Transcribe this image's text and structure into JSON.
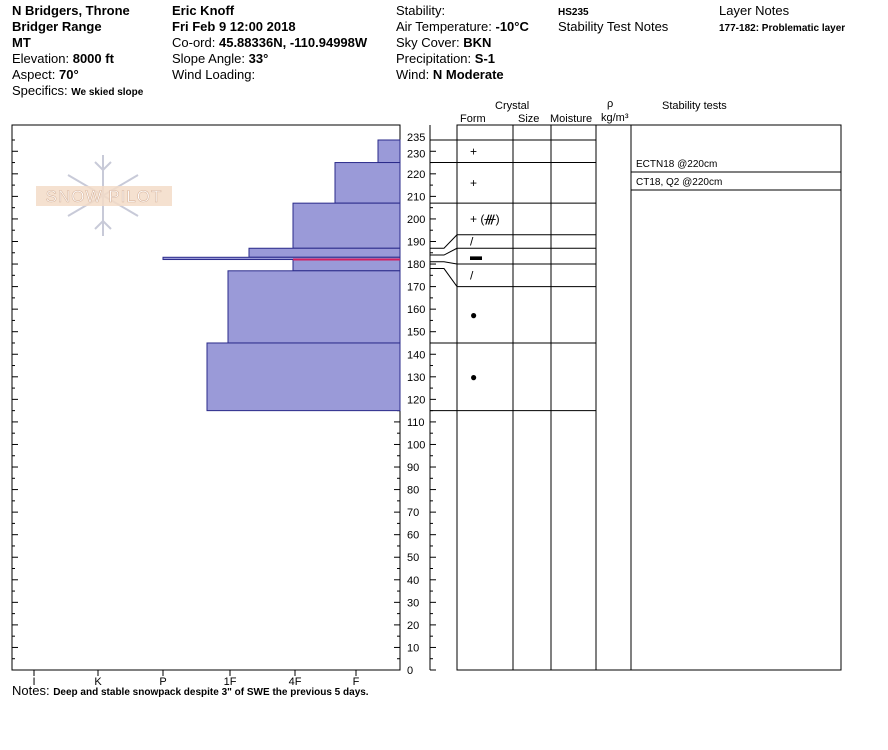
{
  "header": {
    "location_line1": "N Bridgers, Throne",
    "location_line2": "Bridger Range",
    "location_line3": "MT",
    "elevation_label": "Elevation:",
    "elevation_value": "8000 ft",
    "aspect_label": "Aspect:",
    "aspect_value": "70°",
    "specifics_label": "Specifics:",
    "specifics_value": "We skied slope",
    "observer": "Eric Knoff",
    "datetime": "Fri Feb 9 12:00 2018",
    "coord_label": "Co-ord:",
    "coord_value": "45.88336N, -110.94998W",
    "slope_label": "Slope Angle:",
    "slope_value": "33°",
    "wind_loading_label": "Wind Loading:",
    "stability_label": "Stability:",
    "air_temp_label": "Air Temperature:",
    "air_temp_value": "-10°C",
    "sky_label": "Sky Cover:",
    "sky_value": "BKN",
    "precip_label": "Precipitation:",
    "precip_value": "S-1",
    "wind_label": "Wind:",
    "wind_value": "N Moderate",
    "hs": "HS235",
    "stability_test_notes": "Stability Test Notes",
    "layer_notes_title": "Layer Notes",
    "layer_note": "177-182: Problematic layer"
  },
  "logo_text": "SNOW PILOT",
  "table_headers": {
    "crystal": "Crystal",
    "form": "Form",
    "size": "Size",
    "moisture": "Moisture",
    "rho": "ρ",
    "density_unit": "kg/m³",
    "stability_tests": "Stability tests"
  },
  "stability_tests": [
    "ECTN18 @220cm",
    "CT18, Q2 @220cm"
  ],
  "notes_label": "Notes:",
  "notes_value": "Deep and stable snowpack despite 3\" of SWE the previous 5 days.",
  "colors": {
    "layer_fill": "#9a9ad8",
    "layer_stroke": "#2a2a8a",
    "problem_line": "#d02060"
  },
  "chart_data": {
    "type": "bar",
    "subtype": "snow-profile-hardness",
    "x_axis": {
      "ticks": [
        "I",
        "K",
        "P",
        "1F",
        "4F",
        "F"
      ]
    },
    "y_axis": {
      "min": 0,
      "max": 235,
      "tick_labels": [
        0,
        10,
        20,
        30,
        40,
        50,
        60,
        70,
        80,
        90,
        100,
        110,
        120,
        130,
        140,
        150,
        160,
        170,
        180,
        190,
        200,
        210,
        220,
        230,
        235
      ]
    },
    "layers": [
      {
        "top": 235,
        "bottom": 225,
        "hardness": "F"
      },
      {
        "top": 225,
        "bottom": 207,
        "hardness": "4F+"
      },
      {
        "top": 207,
        "bottom": 187,
        "hardness": "4F"
      },
      {
        "top": 187,
        "bottom": 183,
        "hardness": "1F+"
      },
      {
        "top": 183,
        "bottom": 182,
        "hardness": "P"
      },
      {
        "top": 182,
        "bottom": 177,
        "hardness": "4F"
      },
      {
        "top": 177,
        "bottom": 145,
        "hardness": "1F"
      },
      {
        "top": 145,
        "bottom": 115,
        "hardness": "1F-"
      }
    ],
    "problem_layer_height": 182,
    "grain_rows": [
      {
        "top": 235,
        "bottom": 225,
        "form": "+"
      },
      {
        "top": 225,
        "bottom": 207,
        "form": "+"
      },
      {
        "top": 207,
        "bottom": 193,
        "form": "+ (ᚍ)"
      },
      {
        "top": 193,
        "bottom": 187,
        "form": "/"
      },
      {
        "top": 187,
        "bottom": 180,
        "form": "▬"
      },
      {
        "top": 180,
        "bottom": 170,
        "form": "/"
      },
      {
        "top": 170,
        "bottom": 145,
        "form": "●"
      },
      {
        "top": 145,
        "bottom": 115,
        "form": "●"
      }
    ],
    "row_lines_right": [
      235,
      225,
      207,
      193,
      187,
      180,
      170,
      145,
      115
    ],
    "row_lines_left": [
      235,
      225,
      207,
      187,
      184,
      181,
      178,
      145,
      115
    ]
  }
}
